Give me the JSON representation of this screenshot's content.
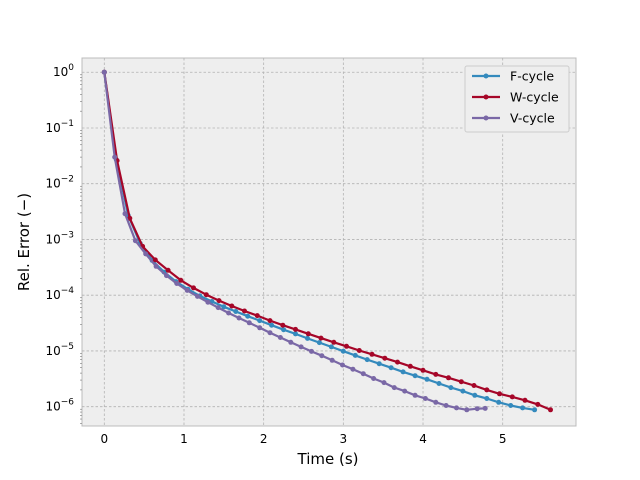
{
  "chart_data": {
    "type": "line",
    "xlabel": "Time (s)",
    "ylabel": "Rel. Error (−)",
    "xlim": [
      -0.28,
      5.92
    ],
    "ylim": [
      4.5e-07,
      1.8
    ],
    "yscale": "log",
    "grid": true,
    "legend_position": "top-right",
    "x_ticks": [
      0,
      1,
      2,
      3,
      4,
      5
    ],
    "x_tick_labels": [
      "0",
      "1",
      "2",
      "3",
      "4",
      "5"
    ],
    "y_ticks": [
      1,
      0.1,
      0.01,
      0.001,
      0.0001,
      1e-05,
      1e-06
    ],
    "y_tick_labels": [
      {
        "base": "10",
        "exp": "0"
      },
      {
        "base": "10",
        "exp": "−1"
      },
      {
        "base": "10",
        "exp": "−2"
      },
      {
        "base": "10",
        "exp": "−3"
      },
      {
        "base": "10",
        "exp": "−4"
      },
      {
        "base": "10",
        "exp": "−5"
      },
      {
        "base": "10",
        "exp": "−6"
      }
    ],
    "series": [
      {
        "name": "F-cycle",
        "color": "#348abd",
        "points": [
          [
            0.0,
            1.0
          ],
          [
            0.15,
            0.027
          ],
          [
            0.3,
            0.0027
          ],
          [
            0.45,
            0.00085
          ],
          [
            0.6,
            0.00042
          ],
          [
            0.75,
            0.00026
          ],
          [
            0.9,
            0.000175
          ],
          [
            1.05,
            0.000128
          ],
          [
            1.2,
            9.7e-05
          ],
          [
            1.35,
            7.7e-05
          ],
          [
            1.5,
            6.2e-05
          ],
          [
            1.65,
            5.1e-05
          ],
          [
            1.8,
            4.2e-05
          ],
          [
            1.95,
            3.5e-05
          ],
          [
            2.1,
            2.9e-05
          ],
          [
            2.25,
            2.4e-05
          ],
          [
            2.4,
            2.02e-05
          ],
          [
            2.55,
            1.68e-05
          ],
          [
            2.7,
            1.41e-05
          ],
          [
            2.85,
            1.18e-05
          ],
          [
            3.0,
            9.9e-06
          ],
          [
            3.15,
            8.3e-06
          ],
          [
            3.3,
            7e-06
          ],
          [
            3.45,
            5.9e-06
          ],
          [
            3.6,
            5e-06
          ],
          [
            3.75,
            4.2e-06
          ],
          [
            3.9,
            3.6e-06
          ],
          [
            4.05,
            3.1e-06
          ],
          [
            4.2,
            2.6e-06
          ],
          [
            4.35,
            2.2e-06
          ],
          [
            4.5,
            1.9e-06
          ],
          [
            4.65,
            1.6e-06
          ],
          [
            4.8,
            1.4e-06
          ],
          [
            4.95,
            1.2e-06
          ],
          [
            5.1,
            1.05e-06
          ],
          [
            5.25,
            9.5e-07
          ],
          [
            5.4,
            8.8e-07
          ]
        ]
      },
      {
        "name": "W-cycle",
        "color": "#a60628",
        "points": [
          [
            0.0,
            1.0
          ],
          [
            0.16,
            0.026
          ],
          [
            0.32,
            0.0024
          ],
          [
            0.48,
            0.00075
          ],
          [
            0.64,
            0.00043
          ],
          [
            0.8,
            0.00028
          ],
          [
            0.96,
            0.000185
          ],
          [
            1.12,
            0.000135
          ],
          [
            1.28,
            0.000102
          ],
          [
            1.44,
            8e-05
          ],
          [
            1.6,
            6.4e-05
          ],
          [
            1.76,
            5.2e-05
          ],
          [
            1.92,
            4.3e-05
          ],
          [
            2.08,
            3.5e-05
          ],
          [
            2.24,
            2.9e-05
          ],
          [
            2.4,
            2.43e-05
          ],
          [
            2.56,
            2.03e-05
          ],
          [
            2.72,
            1.7e-05
          ],
          [
            2.88,
            1.43e-05
          ],
          [
            3.04,
            1.21e-05
          ],
          [
            3.2,
            1.02e-05
          ],
          [
            3.36,
            8.7e-06
          ],
          [
            3.52,
            7.4e-06
          ],
          [
            3.68,
            6.3e-06
          ],
          [
            3.84,
            5.3e-06
          ],
          [
            4.0,
            4.5e-06
          ],
          [
            4.16,
            3.8e-06
          ],
          [
            4.32,
            3.3e-06
          ],
          [
            4.48,
            2.8e-06
          ],
          [
            4.64,
            2.4e-06
          ],
          [
            4.8,
            2e-06
          ],
          [
            4.96,
            1.7e-06
          ],
          [
            5.12,
            1.5e-06
          ],
          [
            5.28,
            1.3e-06
          ],
          [
            5.44,
            1.1e-06
          ],
          [
            5.6,
            8.8e-07
          ]
        ]
      },
      {
        "name": "V-cycle",
        "color": "#7a68a6",
        "points": [
          [
            0.0,
            1.0
          ],
          [
            0.13,
            0.03
          ],
          [
            0.26,
            0.0029
          ],
          [
            0.39,
            0.00095
          ],
          [
            0.52,
            0.00055
          ],
          [
            0.65,
            0.00033
          ],
          [
            0.78,
            0.000225
          ],
          [
            0.91,
            0.000162
          ],
          [
            1.04,
            0.000122
          ],
          [
            1.17,
            9.5e-05
          ],
          [
            1.3,
            7.5e-05
          ],
          [
            1.43,
            6e-05
          ],
          [
            1.56,
            4.8e-05
          ],
          [
            1.69,
            3.9e-05
          ],
          [
            1.82,
            3.2e-05
          ],
          [
            1.95,
            2.6e-05
          ],
          [
            2.08,
            2.12e-05
          ],
          [
            2.21,
            1.74e-05
          ],
          [
            2.34,
            1.43e-05
          ],
          [
            2.47,
            1.18e-05
          ],
          [
            2.6,
            9.8e-06
          ],
          [
            2.73,
            8.2e-06
          ],
          [
            2.86,
            6.8e-06
          ],
          [
            2.99,
            5.6e-06
          ],
          [
            3.12,
            4.7e-06
          ],
          [
            3.25,
            3.9e-06
          ],
          [
            3.38,
            3.2e-06
          ],
          [
            3.51,
            2.7e-06
          ],
          [
            3.64,
            2.2e-06
          ],
          [
            3.77,
            1.9e-06
          ],
          [
            3.9,
            1.6e-06
          ],
          [
            4.03,
            1.4e-06
          ],
          [
            4.16,
            1.2e-06
          ],
          [
            4.29,
            1.05e-06
          ],
          [
            4.42,
            9.5e-07
          ],
          [
            4.55,
            8.8e-07
          ],
          [
            4.68,
            9.2e-07
          ],
          [
            4.78,
            9.3e-07
          ]
        ]
      }
    ]
  }
}
